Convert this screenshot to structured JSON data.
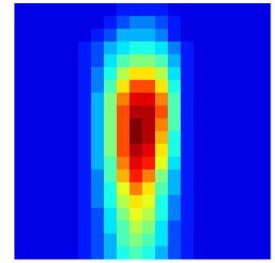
{
  "chart_data": {
    "type": "heatmap",
    "colormap": "jet",
    "clim": [
      0,
      1
    ],
    "values": [
      [
        0.1,
        0.1,
        0.1,
        0.1,
        0.1,
        0.1,
        0.1,
        0.1,
        0.15,
        0.15,
        0.15,
        0.15,
        0.1,
        0.1,
        0.1,
        0.1,
        0.1,
        0.1,
        0.1,
        0.1
      ],
      [
        0.1,
        0.1,
        0.1,
        0.1,
        0.1,
        0.1,
        0.1,
        0.15,
        0.2,
        0.25,
        0.25,
        0.2,
        0.15,
        0.1,
        0.1,
        0.1,
        0.1,
        0.1,
        0.1,
        0.1
      ],
      [
        0.1,
        0.1,
        0.1,
        0.1,
        0.1,
        0.1,
        0.15,
        0.2,
        0.3,
        0.3,
        0.3,
        0.25,
        0.15,
        0.1,
        0.1,
        0.1,
        0.1,
        0.1,
        0.1,
        0.1
      ],
      [
        0.1,
        0.1,
        0.1,
        0.1,
        0.1,
        0.15,
        0.2,
        0.3,
        0.35,
        0.4,
        0.4,
        0.35,
        0.25,
        0.15,
        0.1,
        0.1,
        0.1,
        0.1,
        0.1,
        0.1
      ],
      [
        0.1,
        0.1,
        0.1,
        0.1,
        0.1,
        0.15,
        0.2,
        0.35,
        0.45,
        0.5,
        0.5,
        0.45,
        0.3,
        0.15,
        0.1,
        0.1,
        0.1,
        0.1,
        0.1,
        0.1
      ],
      [
        0.1,
        0.1,
        0.1,
        0.1,
        0.1,
        0.15,
        0.25,
        0.4,
        0.55,
        0.65,
        0.65,
        0.55,
        0.35,
        0.15,
        0.1,
        0.1,
        0.1,
        0.1,
        0.1,
        0.1
      ],
      [
        0.1,
        0.1,
        0.1,
        0.1,
        0.1,
        0.15,
        0.25,
        0.45,
        0.65,
        0.8,
        0.8,
        0.65,
        0.4,
        0.15,
        0.1,
        0.1,
        0.1,
        0.1,
        0.1,
        0.1
      ],
      [
        0.1,
        0.1,
        0.1,
        0.1,
        0.1,
        0.15,
        0.3,
        0.5,
        0.75,
        0.9,
        0.9,
        0.75,
        0.45,
        0.15,
        0.1,
        0.1,
        0.1,
        0.1,
        0.1,
        0.1
      ],
      [
        0.1,
        0.1,
        0.1,
        0.1,
        0.1,
        0.15,
        0.3,
        0.5,
        0.8,
        0.95,
        0.95,
        0.8,
        0.45,
        0.15,
        0.1,
        0.1,
        0.1,
        0.1,
        0.1,
        0.1
      ],
      [
        0.1,
        0.1,
        0.1,
        0.1,
        0.1,
        0.15,
        0.3,
        0.5,
        0.8,
        1.0,
        0.95,
        0.75,
        0.45,
        0.15,
        0.1,
        0.1,
        0.1,
        0.1,
        0.1,
        0.1
      ],
      [
        0.1,
        0.1,
        0.1,
        0.1,
        0.1,
        0.15,
        0.3,
        0.5,
        0.8,
        1.0,
        0.95,
        0.7,
        0.4,
        0.15,
        0.1,
        0.1,
        0.1,
        0.1,
        0.1,
        0.1
      ],
      [
        0.1,
        0.1,
        0.1,
        0.1,
        0.1,
        0.15,
        0.3,
        0.5,
        0.8,
        0.95,
        0.9,
        0.65,
        0.4,
        0.15,
        0.1,
        0.1,
        0.1,
        0.1,
        0.1,
        0.1
      ],
      [
        0.1,
        0.1,
        0.1,
        0.1,
        0.1,
        0.15,
        0.3,
        0.45,
        0.75,
        0.9,
        0.85,
        0.6,
        0.35,
        0.15,
        0.1,
        0.1,
        0.1,
        0.1,
        0.1,
        0.1
      ],
      [
        0.1,
        0.1,
        0.1,
        0.1,
        0.1,
        0.15,
        0.25,
        0.45,
        0.7,
        0.85,
        0.75,
        0.5,
        0.3,
        0.15,
        0.1,
        0.1,
        0.1,
        0.1,
        0.1,
        0.1
      ],
      [
        0.1,
        0.1,
        0.1,
        0.1,
        0.1,
        0.15,
        0.25,
        0.4,
        0.6,
        0.75,
        0.65,
        0.45,
        0.3,
        0.15,
        0.1,
        0.1,
        0.1,
        0.1,
        0.1,
        0.1
      ],
      [
        0.1,
        0.1,
        0.1,
        0.1,
        0.1,
        0.15,
        0.25,
        0.4,
        0.55,
        0.65,
        0.6,
        0.4,
        0.25,
        0.15,
        0.1,
        0.1,
        0.1,
        0.1,
        0.1,
        0.1
      ],
      [
        0.1,
        0.1,
        0.1,
        0.1,
        0.1,
        0.15,
        0.2,
        0.35,
        0.5,
        0.6,
        0.55,
        0.4,
        0.25,
        0.15,
        0.1,
        0.1,
        0.1,
        0.1,
        0.1,
        0.1
      ],
      [
        0.1,
        0.1,
        0.1,
        0.1,
        0.1,
        0.15,
        0.2,
        0.35,
        0.45,
        0.55,
        0.5,
        0.35,
        0.2,
        0.15,
        0.1,
        0.1,
        0.1,
        0.1,
        0.1,
        0.1
      ],
      [
        0.1,
        0.1,
        0.1,
        0.1,
        0.1,
        0.15,
        0.2,
        0.3,
        0.45,
        0.5,
        0.45,
        0.35,
        0.2,
        0.15,
        0.1,
        0.1,
        0.1,
        0.1,
        0.1,
        0.1
      ],
      [
        0.1,
        0.1,
        0.1,
        0.1,
        0.1,
        0.15,
        0.2,
        0.3,
        0.4,
        0.45,
        0.4,
        0.3,
        0.2,
        0.15,
        0.1,
        0.1,
        0.1,
        0.1,
        0.1,
        0.1
      ]
    ]
  }
}
